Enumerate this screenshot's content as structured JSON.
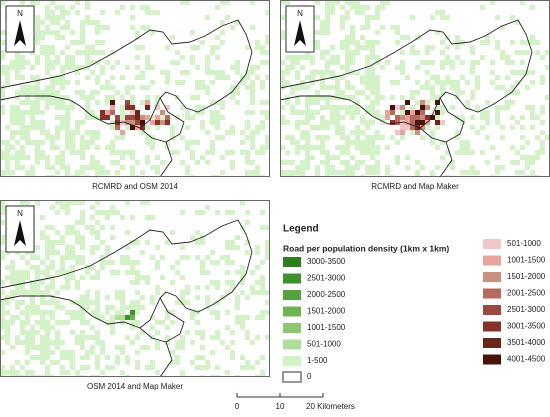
{
  "panels": [
    {
      "caption": "RCMRD and OSM 2014",
      "north": "N",
      "hotspot": "pink"
    },
    {
      "caption": "RCMRD and Map Maker",
      "north": "N",
      "hotspot": "pink"
    },
    {
      "caption": "OSM 2014 and Map Maker",
      "north": "N",
      "hotspot": "green"
    }
  ],
  "legend": {
    "title": "Legend",
    "subtitle": "Road per population density (1km x 1km)",
    "green_classes": [
      {
        "label": "3000-3500",
        "color": "#2e7d1e"
      },
      {
        "label": "2501-3000",
        "color": "#3f8f2a"
      },
      {
        "label": "2000-2500",
        "color": "#55a23a"
      },
      {
        "label": "1501-2000",
        "color": "#6db552"
      },
      {
        "label": "1001-1500",
        "color": "#8cc872"
      },
      {
        "label": "501-1000",
        "color": "#b0dc9c"
      },
      {
        "label": "1-500",
        "color": "#d3f2c8"
      }
    ],
    "zero": {
      "label": "0",
      "color": "#ffffff"
    },
    "pink_classes": [
      {
        "label": "501-1000",
        "color": "#f4c6c6"
      },
      {
        "label": "1001-1500",
        "color": "#e8a39a"
      },
      {
        "label": "1501-2000",
        "color": "#c98f7f"
      },
      {
        "label": "2001-2500",
        "color": "#b56a5e"
      },
      {
        "label": "2501-3000",
        "color": "#9c4a40"
      },
      {
        "label": "3001-3500",
        "color": "#863228"
      },
      {
        "label": "3501-4000",
        "color": "#6e2418"
      },
      {
        "label": "4001-4500",
        "color": "#4a1208"
      }
    ]
  },
  "scale_bar": {
    "labels": [
      "0",
      "10",
      "20 Kilometers"
    ]
  }
}
